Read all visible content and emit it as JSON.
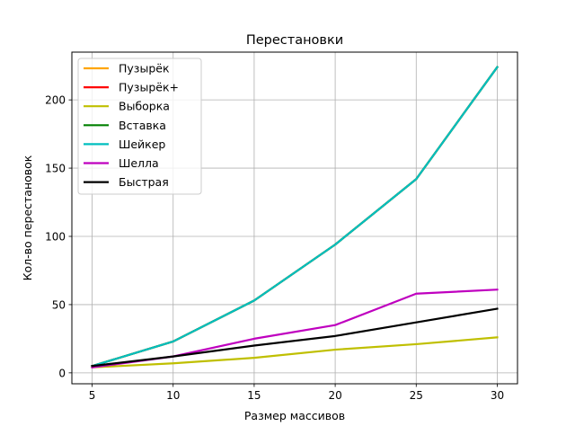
{
  "chart_data": {
    "type": "line",
    "title": "Перестановки",
    "xlabel": "Размер массивов",
    "ylabel": "Кол-во перестановок",
    "x": [
      5,
      10,
      15,
      20,
      25,
      30
    ],
    "xlim": [
      3.75,
      31.25
    ],
    "ylim": [
      -8,
      235
    ],
    "xticks": [
      5,
      10,
      15,
      20,
      25,
      30
    ],
    "yticks": [
      0,
      50,
      100,
      150,
      200
    ],
    "grid": true,
    "legend_position": "top-left",
    "series": [
      {
        "name": "Пузырёк",
        "color": "#ffa500",
        "values": [
          5,
          23,
          53,
          94,
          142,
          224
        ]
      },
      {
        "name": "Пузырёк+",
        "color": "#ff0000",
        "values": [
          5,
          23,
          53,
          94,
          142,
          224
        ]
      },
      {
        "name": "Выборка",
        "color": "#bfbf00",
        "values": [
          4,
          7,
          11,
          17,
          21,
          26
        ]
      },
      {
        "name": "Вставка",
        "color": "#008000",
        "values": [
          5,
          23,
          53,
          94,
          142,
          224
        ]
      },
      {
        "name": "Шейкер",
        "color": "#00bfbf",
        "values": [
          5,
          23,
          53,
          94,
          142,
          224
        ]
      },
      {
        "name": "Шелла",
        "color": "#bf00bf",
        "values": [
          4,
          12,
          25,
          35,
          58,
          61
        ]
      },
      {
        "name": "Быстрая",
        "color": "#000000",
        "values": [
          5,
          12,
          20,
          27,
          37,
          47
        ]
      }
    ]
  }
}
